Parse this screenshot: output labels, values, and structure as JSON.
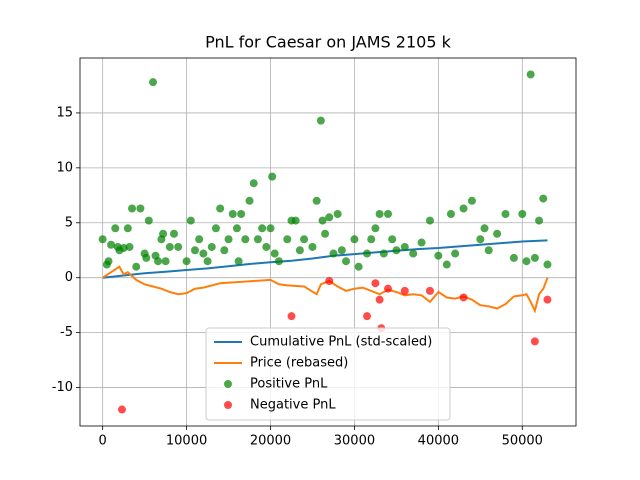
{
  "chart_data": {
    "type": "mixed",
    "title": "PnL for Caesar on JAMS 2105 k",
    "xlim": [
      -2700,
      56400
    ],
    "ylim": [
      -13.5,
      20
    ],
    "xticks": [
      0,
      10000,
      20000,
      30000,
      40000,
      50000
    ],
    "yticks": [
      -10,
      -5,
      0,
      5,
      10,
      15
    ],
    "grid": true,
    "legend": "lower center",
    "series": [
      {
        "name": "Cumulative PnL (std-scaled)",
        "kind": "line",
        "color": "#1f77b4",
        "x": [
          0,
          2500,
          5000,
          7500,
          10000,
          12500,
          15000,
          17500,
          20000,
          22500,
          25000,
          27500,
          30000,
          32500,
          35000,
          37500,
          40000,
          42500,
          45000,
          47500,
          50000,
          53000
        ],
        "values": [
          0,
          0.2,
          0.4,
          0.55,
          0.7,
          0.85,
          1.05,
          1.25,
          1.4,
          1.55,
          1.75,
          2.0,
          2.15,
          2.3,
          2.45,
          2.6,
          2.7,
          2.85,
          3.0,
          3.15,
          3.3,
          3.4
        ]
      },
      {
        "name": "Price (rebased)",
        "kind": "line",
        "color": "#ff7f0e",
        "x": [
          0,
          1000,
          2000,
          2500,
          3000,
          4000,
          5000,
          6000,
          7000,
          8000,
          9000,
          10000,
          11000,
          12000,
          14000,
          16000,
          18000,
          20000,
          21000,
          22000,
          24000,
          25500,
          26000,
          27000,
          28000,
          29000,
          30000,
          31000,
          32000,
          33000,
          34000,
          35000,
          36000,
          37000,
          38000,
          39000,
          40000,
          41000,
          42000,
          43000,
          44000,
          45000,
          46000,
          47000,
          48000,
          49000,
          50000,
          50500,
          51000,
          51500,
          52000,
          52500,
          53000
        ],
        "values": [
          0,
          0.5,
          1.0,
          0.3,
          0.5,
          -0.2,
          -0.6,
          -0.8,
          -1.0,
          -1.3,
          -1.5,
          -1.4,
          -1.0,
          -0.9,
          -0.5,
          -0.4,
          -0.3,
          -0.2,
          -0.6,
          -0.7,
          -0.8,
          -1.5,
          -0.6,
          -0.3,
          -0.8,
          -1.2,
          -1.0,
          -0.9,
          -1.2,
          -1.5,
          -1.1,
          -1.3,
          -1.6,
          -1.5,
          -1.6,
          -2.2,
          -1.3,
          -1.8,
          -1.9,
          -1.7,
          -2.0,
          -2.5,
          -2.6,
          -2.8,
          -2.4,
          -1.7,
          -1.6,
          -1.5,
          -2.2,
          -3.0,
          -1.5,
          -1.0,
          0
        ]
      },
      {
        "name": "Positive PnL",
        "kind": "scatter",
        "color": "#008000",
        "x": [
          0,
          500,
          700,
          1000,
          1500,
          1800,
          2000,
          2500,
          3000,
          3200,
          3500,
          4000,
          4500,
          5000,
          5200,
          5500,
          6000,
          6300,
          6600,
          7000,
          7200,
          7500,
          8000,
          8500,
          9000,
          10000,
          10500,
          11000,
          11500,
          12000,
          12500,
          13000,
          13500,
          14000,
          14500,
          15000,
          15500,
          16000,
          16200,
          16500,
          17000,
          17500,
          18000,
          18500,
          19000,
          19500,
          20000,
          20200,
          20500,
          21000,
          22000,
          22500,
          23000,
          23500,
          24000,
          25000,
          25500,
          26000,
          26200,
          26500,
          27000,
          27500,
          28000,
          28500,
          29000,
          30000,
          30500,
          31500,
          32000,
          32500,
          33000,
          33500,
          34000,
          34500,
          35000,
          36000,
          37000,
          38000,
          39000,
          40000,
          41000,
          41500,
          42000,
          43000,
          44000,
          45000,
          45500,
          46000,
          47000,
          48000,
          49000,
          50000,
          50500,
          51000,
          51500,
          52000,
          52500,
          53000
        ],
        "values": [
          3.5,
          1.2,
          1.5,
          3,
          4.5,
          2.8,
          2.5,
          2.7,
          4.5,
          2.8,
          6.3,
          1,
          6.3,
          2.2,
          1.8,
          5.2,
          17.8,
          2,
          1.5,
          3.5,
          4,
          1.5,
          2.8,
          4,
          2.8,
          1.5,
          5.2,
          2.5,
          3.5,
          2.2,
          1.5,
          2.8,
          4.5,
          6.3,
          2.5,
          3.5,
          5.8,
          4.5,
          1.5,
          5.8,
          3.5,
          7,
          8.6,
          3.5,
          4.5,
          2.8,
          4.5,
          9.2,
          2.2,
          1.5,
          3.5,
          5.2,
          5.2,
          2.5,
          3.5,
          2.8,
          7,
          14.3,
          5.2,
          4,
          5.5,
          2.2,
          5.8,
          2.5,
          1.5,
          3.5,
          1,
          2.2,
          3.5,
          4.5,
          5.8,
          2.2,
          5.8,
          3.5,
          2.5,
          2.8,
          2.2,
          3.2,
          5.2,
          2,
          1.2,
          5.8,
          2.2,
          6.3,
          7,
          3.5,
          4.5,
          2.5,
          4,
          5.8,
          1.8,
          5.8,
          1.5,
          18.5,
          1.8,
          5.2,
          7.2,
          1.2
        ]
      },
      {
        "name": "Negative PnL",
        "kind": "scatter",
        "color": "#ff0000",
        "x": [
          2300,
          22500,
          27000,
          31500,
          32500,
          33000,
          33200,
          34000,
          36000,
          39000,
          43000,
          51500,
          53000
        ],
        "values": [
          -12,
          -3.5,
          -0.3,
          -3.5,
          -0.5,
          -2,
          -4.6,
          -1,
          -1.2,
          -1.2,
          -1.8,
          -5.8,
          -2
        ]
      }
    ]
  }
}
